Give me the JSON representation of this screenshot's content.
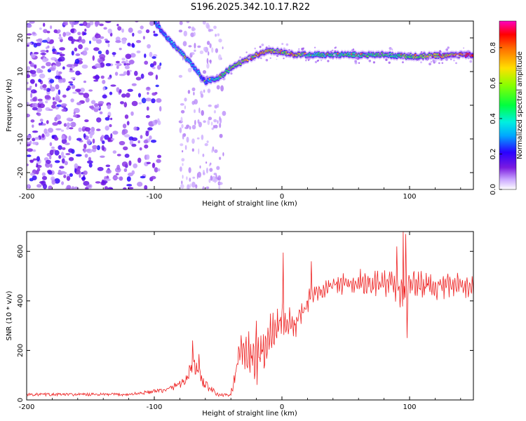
{
  "title": "S196.2025.342.10.17.R22",
  "colorbar": {
    "label": "Normalized spectral amplitude",
    "ticks": [
      "0.0",
      "0.2",
      "0.4",
      "0.6",
      "0.8"
    ],
    "tick_values": [
      0,
      0.2,
      0.4,
      0.6,
      0.8
    ],
    "max": 0.95
  },
  "chart_data": [
    {
      "type": "heatmap",
      "name": "spectrogram",
      "xlabel": "Height of straight line (km)",
      "ylabel": "Frequency (Hz)",
      "xlim": [
        -200,
        150
      ],
      "ylim": [
        -25,
        25
      ],
      "xticks": [
        -200,
        -100,
        0,
        100
      ],
      "xtick_labels": [
        "-200",
        "-100",
        "0",
        "100"
      ],
      "yticks": [
        -20,
        -10,
        0,
        10,
        20
      ],
      "ytick_labels": [
        "-20",
        "-10",
        "0",
        "10",
        "20"
      ],
      "ridge": {
        "description": "dominant frequency ridge",
        "points": [
          [
            -100,
            25
          ],
          [
            -90,
            20
          ],
          [
            -80,
            16
          ],
          [
            -70,
            12
          ],
          [
            -60,
            7
          ],
          [
            -50,
            8
          ],
          [
            -40,
            11
          ],
          [
            -30,
            13
          ],
          [
            -20,
            15
          ],
          [
            -10,
            16
          ],
          [
            0,
            16
          ],
          [
            10,
            15
          ],
          [
            20,
            15
          ],
          [
            50,
            15
          ],
          [
            80,
            15
          ],
          [
            100,
            14.5
          ],
          [
            150,
            15
          ]
        ],
        "amplitude": [
          0.3,
          0.35,
          0.4,
          0.35,
          0.3,
          0.5,
          0.6,
          0.7,
          0.75,
          0.8,
          0.6,
          0.85,
          0.5,
          0.5,
          0.55,
          0.6,
          0.9
        ]
      },
      "noise_region_x": [
        -200,
        -95
      ],
      "scatter_region_x": [
        -80,
        -45
      ]
    },
    {
      "type": "line",
      "name": "snr",
      "xlabel": "Height of straight line (km)",
      "ylabel": "SNR (10 * v/v)",
      "xlim": [
        -200,
        150
      ],
      "ylim": [
        0,
        680
      ],
      "xticks": [
        -200,
        -100,
        0,
        100
      ],
      "xtick_labels": [
        "-200",
        "-100",
        "0",
        "100"
      ],
      "yticks": [
        0,
        200,
        400,
        600
      ],
      "ytick_labels": [
        "0",
        "200",
        "400",
        "600"
      ],
      "color": "#ee2222",
      "trend_x": [
        -200,
        -120,
        -90,
        -75,
        -70,
        -60,
        -50,
        -40,
        -35,
        -30,
        -25,
        -20,
        -10,
        0,
        10,
        20,
        30,
        40,
        50,
        60,
        80,
        90,
        95,
        100,
        120,
        150
      ],
      "trend_y": [
        22,
        22,
        40,
        80,
        150,
        60,
        20,
        20,
        150,
        200,
        180,
        150,
        250,
        320,
        300,
        400,
        440,
        465,
        470,
        470,
        470,
        465,
        400,
        470,
        460,
        460
      ],
      "noise_amplitude": [
        10,
        10,
        15,
        40,
        60,
        40,
        10,
        10,
        60,
        80,
        90,
        100,
        80,
        70,
        60,
        40,
        40,
        40,
        45,
        50,
        55,
        60,
        80,
        50,
        50,
        50
      ],
      "spikes": [
        [
          -70,
          240
        ],
        [
          -65,
          185
        ],
        [
          -20,
          320
        ],
        [
          1,
          595
        ],
        [
          23,
          560
        ],
        [
          90,
          620
        ],
        [
          95,
          680
        ],
        [
          97,
          670
        ],
        [
          98,
          250
        ]
      ]
    }
  ]
}
